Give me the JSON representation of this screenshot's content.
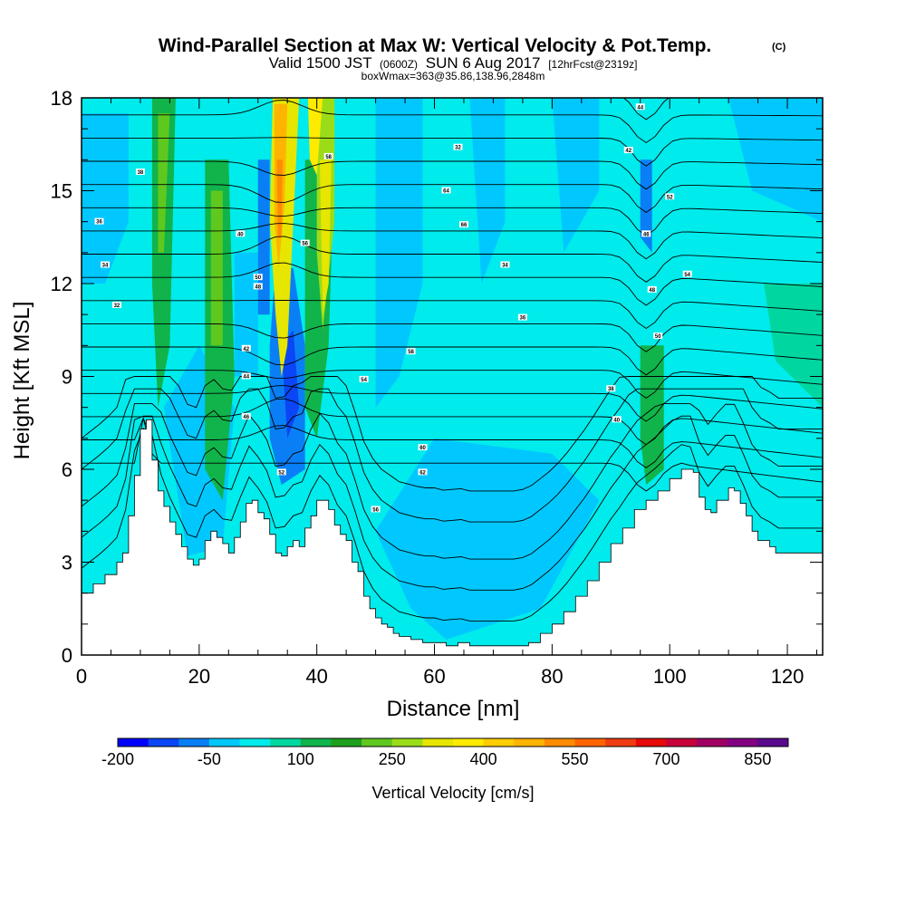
{
  "titles": {
    "main": "Wind-Parallel Section at Max W: Vertical Velocity & Pot.Temp.",
    "main_suffix": "(C)",
    "valid_prefix": "Valid 1500 JST",
    "valid_zulu": "(0600Z)",
    "valid_date": "SUN 6 Aug 2017",
    "forecast": "[12hrFcst@2319z]",
    "boxinfo": "boxWmax=363@35.86,138.96,2848m"
  },
  "chart_data": {
    "type": "heatmap",
    "xlabel": "Distance [nm]",
    "ylabel": "Height [Kft MSL]",
    "xlim": [
      0,
      126
    ],
    "ylim": [
      0,
      18
    ],
    "x_ticks": [
      "0",
      "20",
      "40",
      "60",
      "80",
      "100",
      "120"
    ],
    "y_ticks": [
      "0",
      "3",
      "6",
      "9",
      "12",
      "15",
      "18"
    ],
    "colorbar": {
      "title": "Vertical Velocity [cm/s]",
      "labels": [
        "-200",
        "-50",
        "100",
        "250",
        "400",
        "550",
        "700",
        "850"
      ],
      "colors": [
        "#0000ff",
        "#0a46f5",
        "#0a7ff5",
        "#00c8ff",
        "#00ebeb",
        "#00d7a0",
        "#10b44b",
        "#1ea01e",
        "#5fc81e",
        "#9bdc19",
        "#e6e600",
        "#ffeb00",
        "#ffcd00",
        "#ffb400",
        "#ff8c00",
        "#ff6400",
        "#f03c14",
        "#e60a0a",
        "#c8003c",
        "#a00064",
        "#820082",
        "#5a0a8c"
      ]
    },
    "terrain_kft": [
      [
        0,
        2.0
      ],
      [
        2,
        2.3
      ],
      [
        4,
        2.6
      ],
      [
        6,
        3.0
      ],
      [
        7,
        3.3
      ],
      [
        8,
        4.5
      ],
      [
        9,
        5.8
      ],
      [
        10,
        7.3
      ],
      [
        11,
        7.6
      ],
      [
        12,
        6.3
      ],
      [
        13,
        5.3
      ],
      [
        14,
        4.8
      ],
      [
        15,
        4.3
      ],
      [
        16,
        3.9
      ],
      [
        17,
        3.5
      ],
      [
        18,
        3.1
      ],
      [
        19,
        2.9
      ],
      [
        20,
        3.1
      ],
      [
        21,
        3.7
      ],
      [
        22,
        4.0
      ],
      [
        23,
        3.8
      ],
      [
        24,
        3.6
      ],
      [
        25,
        3.3
      ],
      [
        26,
        3.8
      ],
      [
        27,
        4.3
      ],
      [
        28,
        4.9
      ],
      [
        29,
        5.0
      ],
      [
        30,
        4.6
      ],
      [
        31,
        4.4
      ],
      [
        32,
        3.9
      ],
      [
        33,
        3.3
      ],
      [
        34,
        3.2
      ],
      [
        35,
        3.5
      ],
      [
        36,
        3.7
      ],
      [
        37,
        3.5
      ],
      [
        38,
        4.1
      ],
      [
        39,
        4.5
      ],
      [
        40,
        5.0
      ],
      [
        41,
        5.0
      ],
      [
        42,
        4.7
      ],
      [
        43,
        4.2
      ],
      [
        44,
        3.9
      ],
      [
        45,
        3.7
      ],
      [
        46,
        3.0
      ],
      [
        47,
        2.7
      ],
      [
        48,
        1.9
      ],
      [
        49,
        1.5
      ],
      [
        50,
        1.2
      ],
      [
        51,
        1.0
      ],
      [
        52,
        0.9
      ],
      [
        53,
        0.7
      ],
      [
        54,
        0.6
      ],
      [
        56,
        0.5
      ],
      [
        58,
        0.4
      ],
      [
        60,
        0.4
      ],
      [
        62,
        0.3
      ],
      [
        64,
        0.4
      ],
      [
        66,
        0.3
      ],
      [
        68,
        0.3
      ],
      [
        70,
        0.3
      ],
      [
        72,
        0.3
      ],
      [
        74,
        0.3
      ],
      [
        76,
        0.4
      ],
      [
        78,
        0.7
      ],
      [
        80,
        1.0
      ],
      [
        82,
        1.4
      ],
      [
        84,
        1.9
      ],
      [
        86,
        2.4
      ],
      [
        88,
        3.0
      ],
      [
        90,
        3.6
      ],
      [
        92,
        4.1
      ],
      [
        94,
        4.7
      ],
      [
        96,
        5.0
      ],
      [
        98,
        5.3
      ],
      [
        100,
        5.7
      ],
      [
        102,
        6.0
      ],
      [
        104,
        5.9
      ],
      [
        105,
        5.1
      ],
      [
        106,
        4.7
      ],
      [
        107,
        4.6
      ],
      [
        108,
        5.0
      ],
      [
        110,
        5.4
      ],
      [
        111,
        5.3
      ],
      [
        112,
        4.9
      ],
      [
        113,
        4.5
      ],
      [
        114,
        4.0
      ],
      [
        115,
        3.7
      ],
      [
        117,
        3.5
      ],
      [
        118,
        3.3
      ],
      [
        126,
        3.3
      ]
    ],
    "theta_isotherm_labels": [
      "32",
      "34",
      "36",
      "38",
      "40",
      "42",
      "44",
      "46",
      "48",
      "50",
      "52",
      "54",
      "56",
      "58",
      "60",
      "62",
      "64",
      "66"
    ]
  }
}
